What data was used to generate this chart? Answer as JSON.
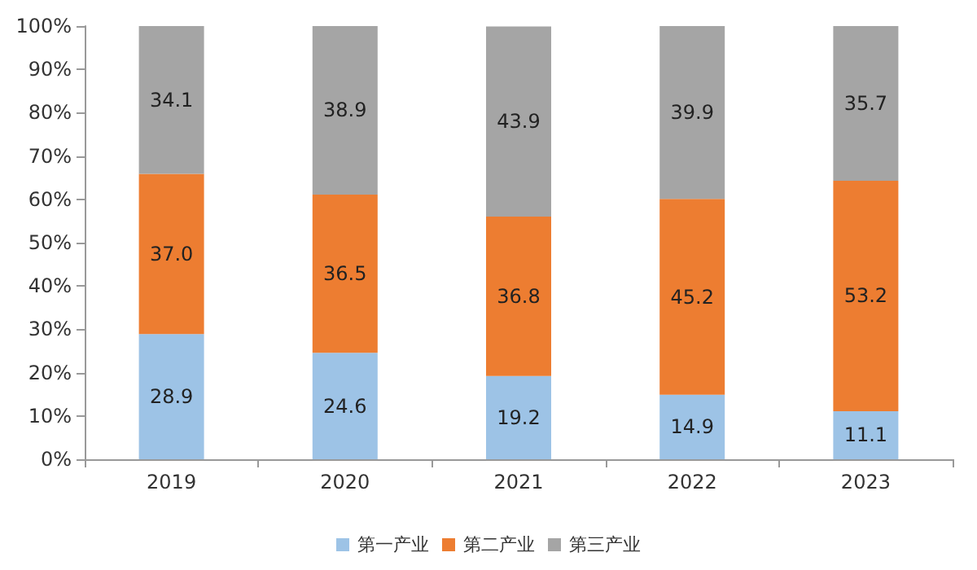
{
  "chart_data": {
    "type": "bar",
    "stacked": true,
    "categories": [
      "2019",
      "2020",
      "2021",
      "2022",
      "2023"
    ],
    "series": [
      {
        "name": "第一产业",
        "color": "#9dc3e6",
        "values": [
          28.9,
          24.6,
          19.2,
          14.9,
          11.1
        ],
        "value_labels": [
          "28.9",
          "24.6",
          "19.2",
          "14.9",
          "11.1"
        ]
      },
      {
        "name": "第二产业",
        "color": "#ed7d31",
        "values": [
          37.0,
          36.5,
          36.8,
          45.2,
          53.2
        ],
        "value_labels": [
          "37.0",
          "36.5",
          "36.8",
          "45.2",
          "53.2"
        ]
      },
      {
        "name": "第三产业",
        "color": "#a5a5a5",
        "values": [
          34.1,
          38.9,
          43.9,
          39.9,
          35.7
        ],
        "value_labels": [
          "34.1",
          "38.9",
          "43.9",
          "39.9",
          "35.7"
        ]
      }
    ],
    "ylim": [
      0,
      100
    ],
    "yticks": [
      {
        "value": 0,
        "label": "0%"
      },
      {
        "value": 10,
        "label": "10%"
      },
      {
        "value": 20,
        "label": "20%"
      },
      {
        "value": 30,
        "label": "30%"
      },
      {
        "value": 40,
        "label": "40%"
      },
      {
        "value": 50,
        "label": "50%"
      },
      {
        "value": 60,
        "label": "60%"
      },
      {
        "value": 70,
        "label": "70%"
      },
      {
        "value": 80,
        "label": "80%"
      },
      {
        "value": 90,
        "label": "90%"
      },
      {
        "value": 100,
        "label": "100%"
      }
    ],
    "grid": false,
    "legend": "bottom"
  }
}
